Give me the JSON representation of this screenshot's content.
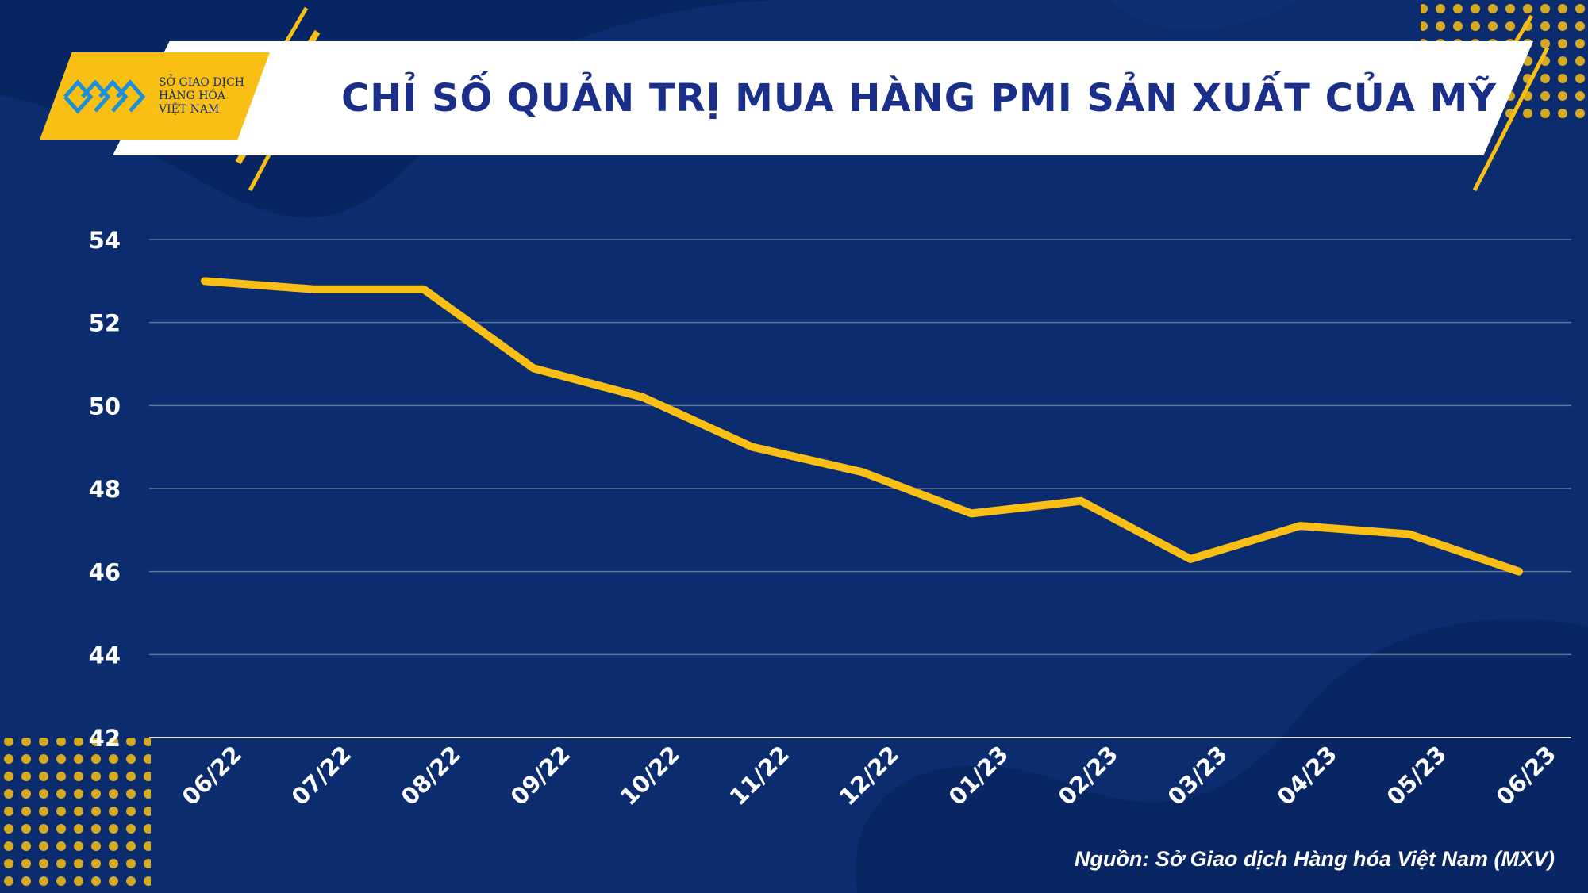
{
  "header": {
    "title": "CHỈ SỐ QUẢN TRỊ MUA HÀNG PMI SẢN XUẤT CỦA MỸ",
    "logo_lines": [
      "SỞ GIAO DỊCH",
      "HÀNG HÓA",
      "VIỆT NAM"
    ]
  },
  "footer": {
    "source": "Nguồn: Sở Giao dịch Hàng hóa Việt Nam (MXV)"
  },
  "colors": {
    "background": "#0b2c6e",
    "accent": "#f9bf14",
    "title_text": "#1a2f8a",
    "axis_text": "#ffffff"
  },
  "chart_data": {
    "type": "line",
    "title": "CHỈ SỐ QUẢN TRỊ MUA HÀNG PMI SẢN XUẤT CỦA MỸ",
    "xlabel": "",
    "ylabel": "",
    "categories": [
      "06/22",
      "07/22",
      "08/22",
      "09/22",
      "10/22",
      "11/22",
      "12/22",
      "01/23",
      "02/23",
      "03/23",
      "04/23",
      "05/23",
      "06/23"
    ],
    "series": [
      {
        "color": "#f9bf14",
        "values": [
          53.0,
          52.8,
          52.8,
          50.9,
          50.2,
          49.0,
          48.4,
          47.4,
          47.7,
          46.3,
          47.1,
          46.9,
          46.0
        ]
      }
    ],
    "y_ticks": [
      42,
      44,
      46,
      48,
      50,
      52,
      54
    ],
    "ylim": [
      42,
      54
    ],
    "grid": true,
    "legend": "none"
  }
}
